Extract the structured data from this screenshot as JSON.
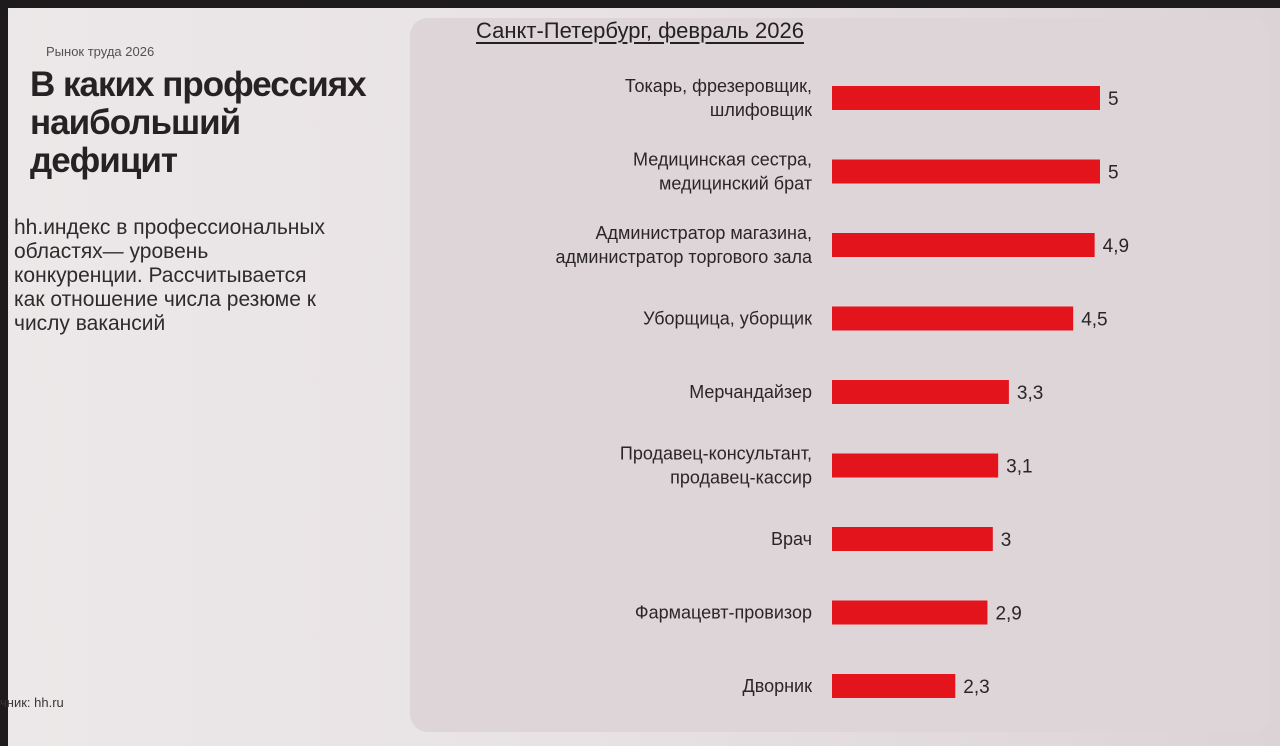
{
  "kicker": "Рынок труда 2026",
  "headline": {
    "line1": "В каких профессиях",
    "line2": "наибольший",
    "line3": "дефицит"
  },
  "description": {
    "line1": "hh.индекс в профессиональных",
    "line2": "областях— уровень",
    "line3": "конкуренции. Рассчитывается",
    "line4": "как отношение числа резюме к",
    "line5": "числу вакансий"
  },
  "source": "чник: hh.ru",
  "colors": {
    "bar": "#e4141c",
    "text": "#262224"
  },
  "chart_data": {
    "type": "bar",
    "orientation": "horizontal",
    "title": "Санкт-Петербург, февраль 2026",
    "categories": [
      [
        "Токарь, фрезеровщик,",
        "шлифовщик"
      ],
      [
        "Медицинская сестра,",
        "медицинский брат"
      ],
      [
        "Администратор магазина,",
        "администратор торгового зала"
      ],
      [
        "Уборщица, уборщик"
      ],
      [
        "Мерчандайзер"
      ],
      [
        "Продавец-консультант,",
        "продавец-кассир"
      ],
      [
        "Врач"
      ],
      [
        "Фармацевт-провизор"
      ],
      [
        "Дворник"
      ]
    ],
    "values": [
      5,
      5,
      4.9,
      4.5,
      3.3,
      3.1,
      3,
      2.9,
      2.3
    ],
    "value_labels": [
      "5",
      "5",
      "4,9",
      "4,5",
      "3,3",
      "3,1",
      "3",
      "2,9",
      "2,3"
    ],
    "xlim": [
      0,
      5
    ],
    "grid": false,
    "legend": "none"
  }
}
